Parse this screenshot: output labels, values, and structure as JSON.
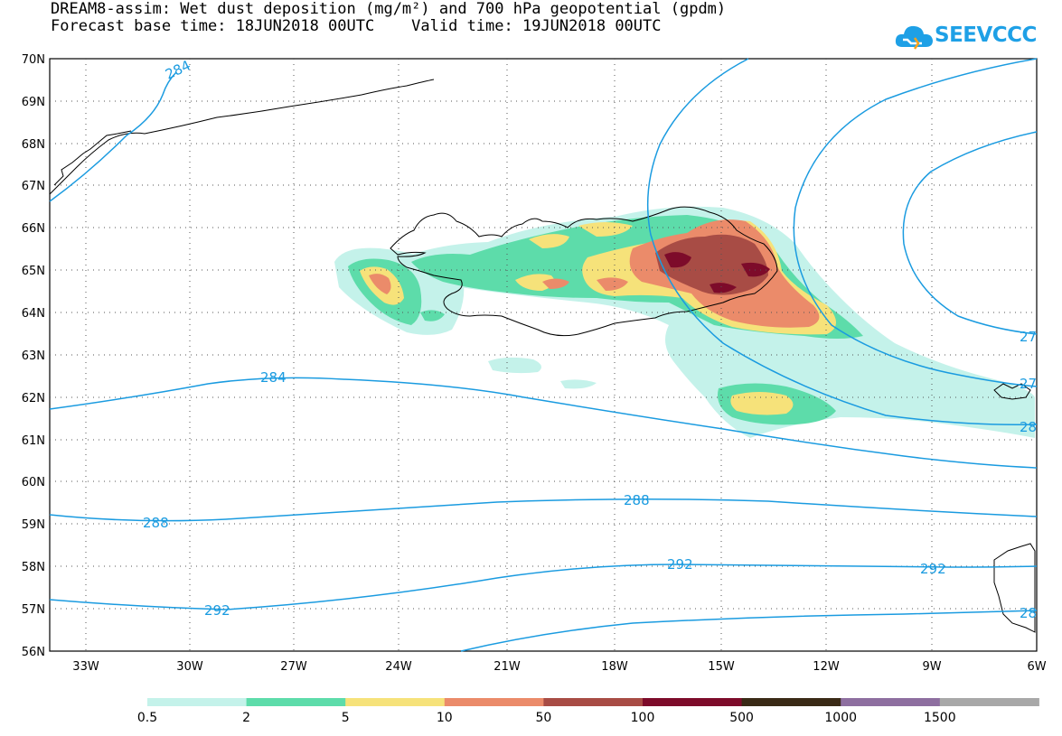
{
  "title_line1": "DREAM8-assim: Wet dust deposition (mg/m²) and 700 hPa geopotential (gpdm)",
  "title_line2": "Forecast base time: 18JUN2018 00UTC    Valid time: 19JUN2018 00UTC",
  "logo_text": "SEEVCCC",
  "lat_labels": [
    "70N",
    "69N",
    "68N",
    "67N",
    "66N",
    "65N",
    "64N",
    "63N",
    "62N",
    "61N",
    "60N",
    "59N",
    "58N",
    "57N",
    "56N"
  ],
  "lon_labels": [
    "33W",
    "30W",
    "27W",
    "24W",
    "21W",
    "18W",
    "15W",
    "12W",
    "9W",
    "6W"
  ],
  "contour_labels": [
    "284",
    "284",
    "288",
    "288",
    "292",
    "292",
    "292",
    "27",
    "27",
    "28",
    "28"
  ],
  "legend": {
    "labels": [
      "0.5",
      "2",
      "5",
      "10",
      "50",
      "100",
      "500",
      "1000",
      "1500"
    ],
    "colors": [
      "#c4f2ea",
      "#5ddcaa",
      "#f6e27a",
      "#eb8b6a",
      "#a84c45",
      "#7d0b2a",
      "#3a2a16",
      "#8e6fa0",
      "#a8a8a8"
    ]
  },
  "colors": {
    "contour": "#1a9be0",
    "coast": "#000000"
  }
}
